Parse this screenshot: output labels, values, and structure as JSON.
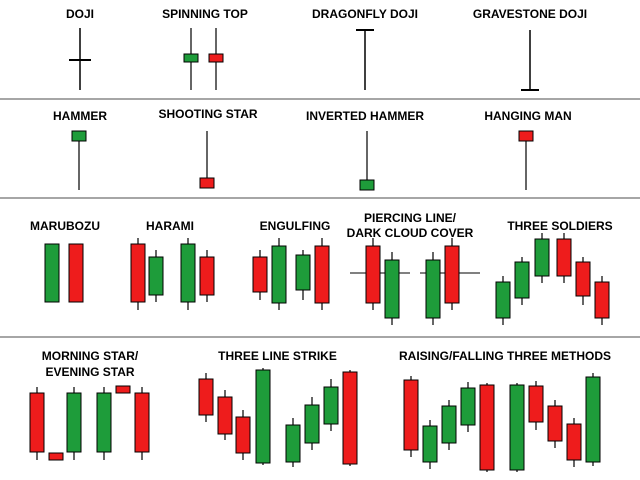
{
  "colors": {
    "bull": "#1e9c3a",
    "bear": "#ee1c1c",
    "wick": "#000000",
    "divider": "#a6a6a6"
  },
  "rows": [
    {
      "patterns": [
        {
          "key": "doji",
          "label": "DOJI"
        },
        {
          "key": "spinning-top",
          "label": "SPINNING TOP"
        },
        {
          "key": "dragonfly-doji",
          "label": "DRAGONFLY DOJI"
        },
        {
          "key": "gravestone-doji",
          "label": "GRAVESTONE DOJI"
        }
      ]
    },
    {
      "patterns": [
        {
          "key": "hammer",
          "label": "HAMMER"
        },
        {
          "key": "shooting-star",
          "label": "SHOOTING STAR"
        },
        {
          "key": "inverted-hammer",
          "label": "INVERTED HAMMER"
        },
        {
          "key": "hanging-man",
          "label": "HANGING MAN"
        }
      ]
    },
    {
      "patterns": [
        {
          "key": "marubozu",
          "label": "MARUBOZU"
        },
        {
          "key": "harami",
          "label": "HARAMI"
        },
        {
          "key": "engulfing",
          "label": "ENGULFING"
        },
        {
          "key": "piercing-line",
          "label": "PIERCING LINE/"
        },
        {
          "key": "dark-cloud-cover",
          "label": "DARK CLOUD COVER"
        },
        {
          "key": "three-soldiers",
          "label": "THREE SOLDIERS"
        }
      ]
    },
    {
      "patterns": [
        {
          "key": "morning-star",
          "label": "MORNING STAR/"
        },
        {
          "key": "evening-star",
          "label": "EVENING STAR"
        },
        {
          "key": "three-line-strike",
          "label": "THREE LINE STRIKE"
        },
        {
          "key": "three-methods",
          "label": "RAISING/FALLING THREE METHODS"
        }
      ]
    }
  ]
}
